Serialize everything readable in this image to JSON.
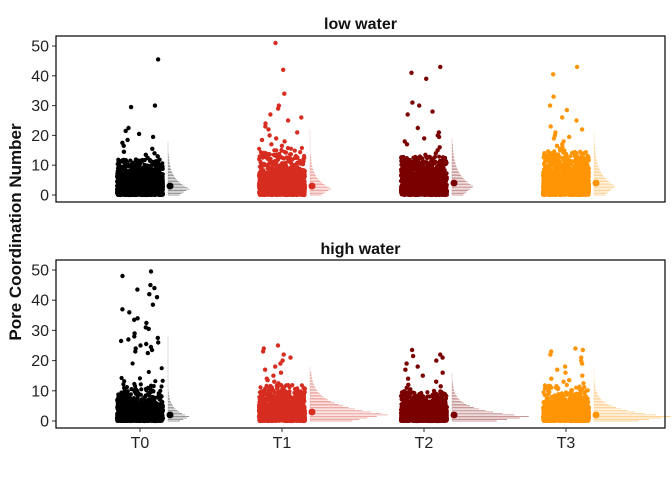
{
  "chart_data": {
    "type": "scatter",
    "subtype": "jitter-points-with-half-density",
    "ylabel": "Pore Coordination Number",
    "xlabel": "",
    "categories": [
      "T0",
      "T1",
      "T2",
      "T3"
    ],
    "ylim": [
      -1,
      53
    ],
    "yticks": [
      0,
      10,
      20,
      30,
      40,
      50
    ],
    "grid": false,
    "legend": "none",
    "series_colors": {
      "T0": "#000000",
      "T1": "#d62d20",
      "T2": "#7a0000",
      "T3": "#ff9505"
    },
    "panels": [
      {
        "title": "low water",
        "groups": [
          {
            "category": "T0",
            "mean": 3,
            "bulk_max": 12,
            "outliers": [
              45.5,
              30,
              29.5,
              22.5,
              21.5,
              20.5,
              19.5,
              18.5,
              17.5,
              16.5,
              15.5,
              14.5,
              14,
              13.5,
              13,
              12.5
            ]
          },
          {
            "category": "T1",
            "mean": 3,
            "bulk_max": 16,
            "outliers": [
              51,
              42,
              34,
              30,
              29,
              27,
              26,
              25,
              24,
              23,
              22,
              21,
              20,
              19,
              18.5,
              18,
              17,
              16.5
            ]
          },
          {
            "category": "T2",
            "mean": 4,
            "bulk_max": 13,
            "outliers": [
              43,
              41,
              39,
              31,
              30,
              28,
              27,
              22.5,
              21,
              20,
              19.5,
              19,
              18,
              17,
              16,
              15,
              14,
              13.5
            ]
          },
          {
            "category": "T3",
            "mean": 4,
            "bulk_max": 15,
            "outliers": [
              43,
              40.5,
              33,
              30,
              28.5,
              26,
              25,
              23,
              22,
              21,
              20,
              19.5,
              19,
              18,
              17,
              16.5,
              16,
              15.5
            ]
          }
        ]
      },
      {
        "title": "high water",
        "groups": [
          {
            "category": "T0",
            "mean": 2,
            "bulk_max": 22,
            "outliers": [
              49.5,
              48,
              45,
              44,
              43.5,
              42,
              41,
              38.5,
              37,
              36,
              34,
              33.5,
              32.5,
              31,
              30.5,
              29,
              28,
              27.5,
              27,
              26.5,
              26,
              25.5,
              25,
              24.5,
              24,
              23.5,
              23,
              22.5
            ]
          },
          {
            "category": "T1",
            "mean": 3,
            "bulk_max": 12,
            "outliers": [
              25,
              24,
              23,
              22,
              21,
              20,
              19,
              18,
              17,
              16,
              15,
              14,
              13.5,
              13,
              12.5
            ]
          },
          {
            "category": "T2",
            "mean": 2,
            "bulk_max": 10,
            "outliers": [
              23.5,
              22,
              21.5,
              21,
              20,
              19,
              18,
              17,
              16,
              15,
              14,
              13,
              12,
              11.5,
              11,
              10.5
            ]
          },
          {
            "category": "T3",
            "mean": 2,
            "bulk_max": 12,
            "outliers": [
              24,
              23.5,
              23,
              22,
              21,
              20,
              19,
              18,
              17,
              16,
              15,
              14,
              13.5,
              13,
              12.5
            ]
          }
        ]
      }
    ]
  }
}
